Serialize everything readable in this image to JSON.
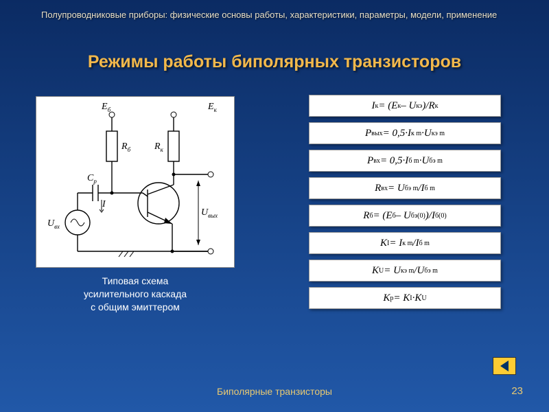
{
  "colors": {
    "bg_top": "#0b2b63",
    "bg_bottom": "#2158a8",
    "title": "#f2b84b",
    "header_text": "#e8dfc6",
    "caption_text": "#ffffff",
    "footer_text": "#e8c973",
    "formula_bg": "#ffffff",
    "nav_fill": "#ffcc33"
  },
  "header": "Полупроводниковые приборы: физические основы работы, характеристики, параметры, модели,  применение",
  "title": "Режимы работы биполярных транзисторов",
  "circuit": {
    "caption_line1": "Типовая схема",
    "caption_line2": "усилительного каскада",
    "caption_line3": "с общим эмиттером",
    "labels": {
      "Eb": "Eб",
      "Ek": "Eк",
      "Rb": "Rб",
      "Rk": "Rк",
      "Cp": "Cр",
      "Uvx": "Uвх",
      "Uvyx": "Uвых",
      "I": "I"
    }
  },
  "formulas": [
    {
      "html": "I<sub>к</sub> = (E<sub>к</sub> – U<sub>кэ</sub>)/R<sub>к</sub>"
    },
    {
      "html": "P<sub>вых </sub> = 0,5·I<sub>к m</sub> ·U<sub>кэ  m</sub>"
    },
    {
      "html": "P<sub>вх</sub> = 0,5·I<sub>б m</sub> ·U<sub>бэ m</sub>"
    },
    {
      "html": "R<sub>вх</sub> = U<sub>бэ m</sub> /I<sub>б m</sub>"
    },
    {
      "html": "R<sub>б</sub> = (E<sub>б</sub> – U<sub>бэ(0)</sub>)/I<sub>б(0)</sub>"
    },
    {
      "html": "K<sub>I</sub> = I<sub>к m</sub> /I<sub>б m</sub>"
    },
    {
      "html": "K<sub>U</sub> = U<sub>кэ m</sub> /U<sub>бэ m</sub>"
    },
    {
      "html": "K<sub>р</sub> = K<sub>I</sub> ·K<sub>U</sub>"
    }
  ],
  "footer": {
    "section": "Биполярные транзисторы",
    "page": "23"
  }
}
